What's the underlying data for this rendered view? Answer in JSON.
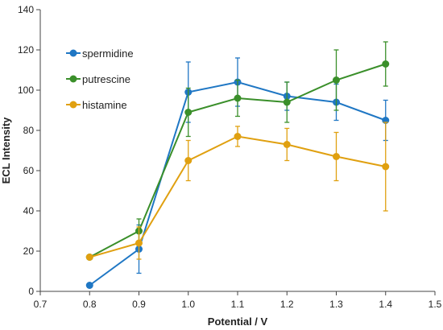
{
  "chart_data": {
    "type": "line",
    "title": "",
    "xlabel": "Potential / V",
    "ylabel": "ECL Intensity",
    "xlim": [
      0.7,
      1.5
    ],
    "ylim": [
      0,
      140
    ],
    "xticks": [
      "0.7",
      "0.8",
      "0.9",
      "1.0",
      "1.1",
      "1.2",
      "1.3",
      "1.4",
      "1.5"
    ],
    "yticks": [
      "0",
      "20",
      "40",
      "60",
      "80",
      "100",
      "120",
      "140"
    ],
    "grid": false,
    "legend_position": "top-left",
    "series": [
      {
        "name": "spermidine",
        "color": "#1f77c4",
        "x": [
          0.8,
          0.9,
          1.0,
          1.1,
          1.2,
          1.3,
          1.4
        ],
        "y": [
          3,
          21,
          99,
          104,
          97,
          94,
          85
        ],
        "err": [
          0,
          12,
          15,
          12,
          7,
          9,
          10
        ]
      },
      {
        "name": "putrescine",
        "color": "#3a8f2a",
        "x": [
          0.8,
          0.9,
          1.0,
          1.1,
          1.2,
          1.3,
          1.4
        ],
        "y": [
          17,
          30,
          89,
          96,
          94,
          105,
          113
        ],
        "err": [
          0,
          6,
          12,
          9,
          10,
          15,
          11
        ]
      },
      {
        "name": "histamine",
        "color": "#e0a010",
        "x": [
          0.8,
          0.9,
          1.0,
          1.1,
          1.2,
          1.3,
          1.4
        ],
        "y": [
          17,
          24,
          65,
          77,
          73,
          67,
          62
        ],
        "err": [
          0,
          8,
          10,
          5,
          8,
          12,
          22
        ]
      }
    ]
  }
}
